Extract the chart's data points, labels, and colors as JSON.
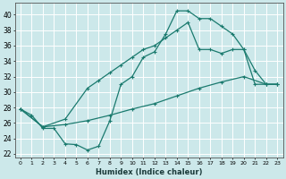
{
  "xlabel": "Humidex (Indice chaleur)",
  "xlim": [
    -0.5,
    23.5
  ],
  "ylim": [
    21.5,
    41.5
  ],
  "background_color": "#cce8ea",
  "grid_color": "#ffffff",
  "line_color": "#1a7a6e",
  "line1_x": [
    0,
    1,
    2,
    3,
    4,
    5,
    6,
    7,
    8,
    9,
    10,
    11,
    12,
    13,
    14,
    15,
    16,
    17,
    18,
    19,
    20,
    21,
    22,
    23
  ],
  "line1_y": [
    27.8,
    27.0,
    25.3,
    25.3,
    23.3,
    23.2,
    22.5,
    23.0,
    26.3,
    31.0,
    32.0,
    34.5,
    35.2,
    37.5,
    40.5,
    40.5,
    39.5,
    39.5,
    38.5,
    37.5,
    35.5,
    32.8,
    31.0,
    31.0
  ],
  "line2_x": [
    0,
    2,
    4,
    6,
    8,
    10,
    12,
    14,
    16,
    18,
    20,
    22,
    23
  ],
  "line2_y": [
    27.8,
    25.5,
    25.8,
    26.3,
    27.0,
    27.8,
    28.5,
    29.5,
    30.5,
    31.3,
    32.0,
    31.0,
    31.0
  ],
  "line3_x": [
    0,
    2,
    4,
    6,
    7,
    8,
    9,
    10,
    11,
    12,
    13,
    14,
    15,
    16,
    17,
    18,
    19,
    20,
    21,
    22,
    23
  ],
  "line3_y": [
    27.8,
    25.5,
    26.5,
    30.5,
    31.5,
    32.5,
    33.5,
    34.5,
    35.5,
    36.0,
    37.0,
    38.0,
    39.0,
    35.5,
    35.5,
    35.0,
    35.5,
    35.5,
    31.0,
    31.0,
    31.0
  ],
  "yticks": [
    22,
    24,
    26,
    28,
    30,
    32,
    34,
    36,
    38,
    40
  ]
}
